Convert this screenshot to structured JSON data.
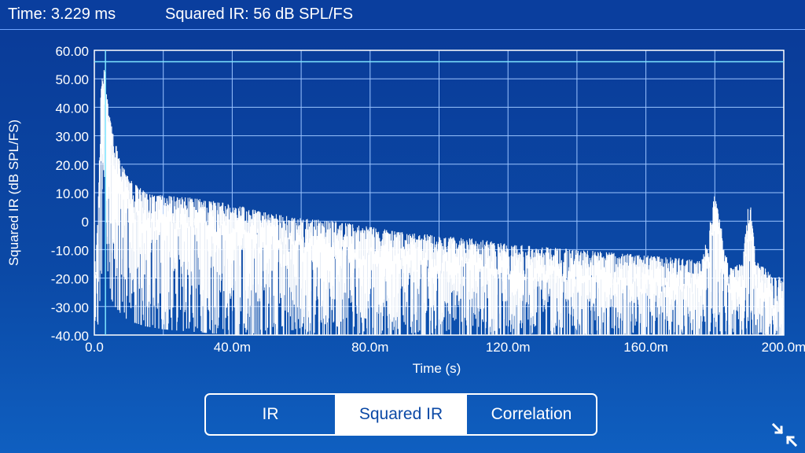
{
  "header": {
    "time_label": "Time:",
    "time_value": "3.229 ms",
    "value_label": "Squared IR:",
    "value_value": "56 dB SPL/FS"
  },
  "chart_data": {
    "type": "line",
    "title": "",
    "xlabel": "Time (s)",
    "ylabel": "Squared IR (dB SPL/FS)",
    "xlim": [
      0,
      0.2
    ],
    "ylim": [
      -40,
      60
    ],
    "x_ticks": [
      "0.0",
      "40.0m",
      "80.0m",
      "120.0m",
      "160.0m",
      "200.0m"
    ],
    "y_ticks": [
      "60.00",
      "50.00",
      "40.00",
      "30.00",
      "20.00",
      "10.00",
      "0",
      "-10.00",
      "-20.00",
      "-30.00",
      "-40.00"
    ],
    "grid": true,
    "cursor": {
      "x": 0.003229,
      "y": 56
    },
    "series": [
      {
        "x": [
          0.0,
          0.001,
          0.002,
          0.003,
          0.004,
          0.006,
          0.008,
          0.01,
          0.015,
          0.02,
          0.03,
          0.04,
          0.05,
          0.06,
          0.07,
          0.08,
          0.09,
          0.1,
          0.11,
          0.12,
          0.13,
          0.14,
          0.15,
          0.16,
          0.17,
          0.176,
          0.178,
          0.18,
          0.184,
          0.188,
          0.19,
          0.192,
          0.196,
          0.2
        ],
        "upper": [
          -15,
          0,
          50,
          56,
          40,
          28,
          20,
          15,
          10,
          9,
          8,
          6,
          3,
          1,
          0,
          -2,
          -4,
          -5,
          -6,
          -8,
          -9,
          -10,
          -11,
          -12,
          -13,
          -14,
          -5,
          10,
          -16,
          -15,
          10,
          -14,
          -18,
          -20
        ],
        "lower": [
          -40,
          -40,
          -20,
          -15,
          -25,
          -30,
          -33,
          -35,
          -37,
          -38,
          -39,
          -40,
          -40,
          -40,
          -40,
          -40,
          -40,
          -40,
          -40,
          -40,
          -40,
          -40,
          -40,
          -40,
          -40,
          -40,
          -40,
          -40,
          -40,
          -40,
          -40,
          -40,
          -40,
          -40
        ]
      }
    ]
  },
  "tabs": [
    "IR",
    "Squared IR",
    "Correlation"
  ],
  "active_tab": 1,
  "icons": {
    "collapse": "collapse-arrows-icon"
  },
  "colors": {
    "background": "#0b49a6",
    "grid": "#9bc4ff",
    "cursor": "#7fe6ff",
    "trace": "#ffffff"
  }
}
